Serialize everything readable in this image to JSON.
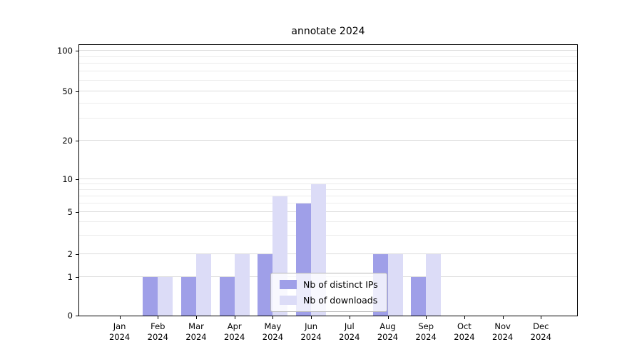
{
  "title": "annotate 2024",
  "chart_data": {
    "type": "bar",
    "title": "annotate 2024",
    "categories": [
      "Jan 2024",
      "Feb 2024",
      "Mar 2024",
      "Apr 2024",
      "May 2024",
      "Jun 2024",
      "Jul 2024",
      "Aug 2024",
      "Sep 2024",
      "Oct 2024",
      "Nov 2024",
      "Dec 2024"
    ],
    "series": [
      {
        "name": "Nb of distinct IPs",
        "color": "#9f9fe8",
        "values": [
          0,
          1,
          1,
          1,
          2,
          6,
          0,
          2,
          1,
          0,
          0,
          0
        ]
      },
      {
        "name": "Nb of downloads",
        "color": "#dcdcf7",
        "values": [
          0,
          1,
          2,
          2,
          7,
          9,
          0,
          2,
          2,
          0,
          0,
          0
        ]
      }
    ],
    "yscale": "log-like",
    "y_ticks": [
      0,
      1,
      2,
      5,
      10,
      20,
      50,
      100
    ],
    "y_minor_gridlines": [
      3,
      4,
      6,
      7,
      8,
      9,
      30,
      40,
      60,
      70,
      80,
      90
    ],
    "ylim": [
      0,
      110
    ],
    "grid": "horizontal",
    "legend": {
      "position": "lower center",
      "items": [
        "Nb of distinct IPs",
        "Nb of downloads"
      ]
    }
  },
  "colors": {
    "grid_major": "#dcdcdc",
    "grid_minor": "#ececec",
    "axis": "#000000",
    "background": "#ffffff"
  }
}
